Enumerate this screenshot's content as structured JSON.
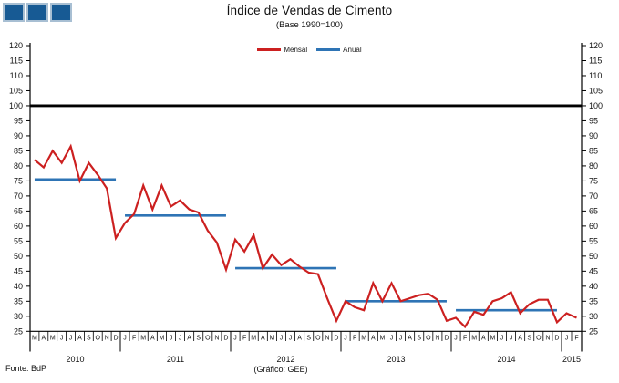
{
  "header": {
    "title": "Índice de Vendas de Cimento",
    "subtitle": "(Base 1990=100)"
  },
  "footer": {
    "source": "Fonte: BdP",
    "credit": "(Gráfico: GEE)"
  },
  "chart_data": {
    "type": "line",
    "title": "Índice de Vendas de Cimento",
    "subtitle": "(Base 1990=100)",
    "ylim": [
      25,
      120
    ],
    "ytick_step": 5,
    "reference_line": 100,
    "grid": false,
    "legend": [
      {
        "label": "Mensal",
        "color": "#CC2020"
      },
      {
        "label": "Anual",
        "color": "#2E74B5"
      }
    ],
    "colors": {
      "mensal": "#CC2020",
      "anual": "#2E74B5",
      "reference": "#000000",
      "axis": "#000000",
      "logo_blue": "#175A94"
    },
    "years": [
      {
        "year": "2010",
        "months": [
          "M",
          "A",
          "M",
          "J",
          "J",
          "A",
          "S",
          "O",
          "N",
          "D"
        ],
        "mensal": [
          82,
          79.5,
          85,
          81,
          86.5,
          75,
          81,
          77,
          72.5,
          56
        ],
        "anual": 75.5
      },
      {
        "year": "2011",
        "months": [
          "J",
          "F",
          "M",
          "A",
          "M",
          "J",
          "J",
          "A",
          "S",
          "O",
          "N",
          "D"
        ],
        "mensal": [
          61,
          64,
          73.5,
          65.5,
          73.5,
          66.5,
          68.5,
          65.5,
          64.5,
          58.5,
          54.5,
          45.5
        ],
        "anual": 63.5
      },
      {
        "year": "2012",
        "months": [
          "J",
          "F",
          "M",
          "A",
          "M",
          "J",
          "J",
          "A",
          "S",
          "O",
          "N",
          "D"
        ],
        "mensal": [
          55.5,
          51.5,
          57,
          46,
          50.5,
          47,
          49,
          46.5,
          44.5,
          44,
          36,
          28.5
        ],
        "anual": 46
      },
      {
        "year": "2013",
        "months": [
          "J",
          "F",
          "M",
          "A",
          "M",
          "J",
          "J",
          "A",
          "S",
          "O",
          "N",
          "D"
        ],
        "mensal": [
          35,
          33,
          32,
          41,
          35,
          41,
          35,
          36,
          37,
          37.5,
          35.5,
          28.5
        ],
        "anual": 35
      },
      {
        "year": "2014",
        "months": [
          "J",
          "F",
          "M",
          "A",
          "M",
          "J",
          "J",
          "A",
          "S",
          "O",
          "N",
          "D"
        ],
        "mensal": [
          29.5,
          26.5,
          31.5,
          30.5,
          35,
          36,
          38,
          31,
          34,
          35.5,
          35.5,
          28
        ],
        "anual": 32
      },
      {
        "year": "2015",
        "months": [
          "J",
          "F"
        ],
        "mensal": [
          31,
          29.5
        ],
        "anual": null
      }
    ]
  }
}
